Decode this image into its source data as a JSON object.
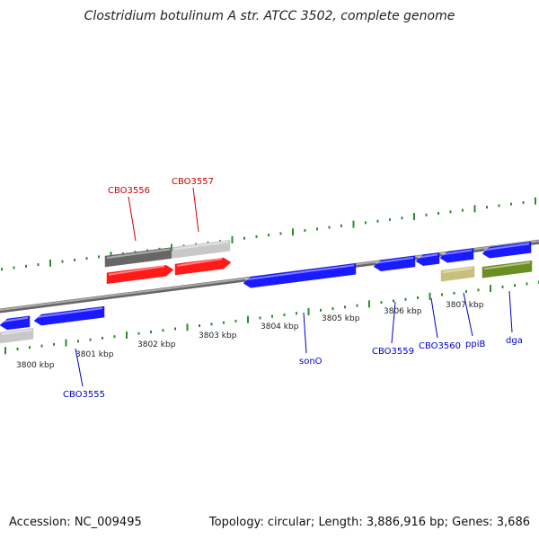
{
  "title": "Clostridium botulinum A str. ATCC 3502, complete genome",
  "footer": {
    "accession": "Accession: NC_009495",
    "info": "Topology: circular; Length: 3,886,916 bp; Genes: 3,686"
  },
  "colors": {
    "backbone": "#888888",
    "tick": "#2e8b2e",
    "gene_blue": "#1a1aff",
    "gene_red": "#ff1a1a",
    "gene_dark_gray": "#666666",
    "gene_light_gray": "#c8c8c8",
    "gene_khaki": "#c8c07a",
    "gene_olive": "#6b8e23",
    "label_blue": "#0000cc",
    "label_red": "#cc0000"
  },
  "tick_labels": [
    "3800 kbp",
    "3801 kbp",
    "3802 kbp",
    "3803 kbp",
    "3804 kbp",
    "3805 kbp",
    "3806 kbp",
    "3807 kbp"
  ],
  "gene_labels": [
    {
      "text": "CBO3556",
      "color": "red"
    },
    {
      "text": "CBO3557",
      "color": "red"
    },
    {
      "text": "CBO3555",
      "color": "blue"
    },
    {
      "text": "sonO",
      "color": "blue"
    },
    {
      "text": "CBO3559",
      "color": "blue"
    },
    {
      "text": "CBO3560",
      "color": "blue"
    },
    {
      "text": "ppiB",
      "color": "blue"
    },
    {
      "text": "dga",
      "color": "blue"
    }
  ]
}
